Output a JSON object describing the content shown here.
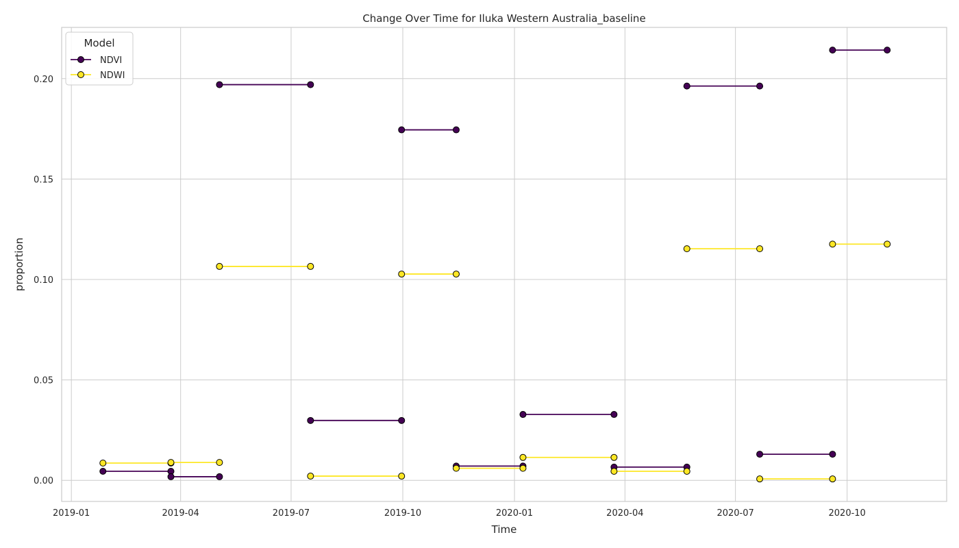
{
  "chart_data": {
    "type": "line",
    "title": "Change Over Time for Iluka Western Australia_baseline",
    "xlabel": "Time",
    "ylabel": "proportion",
    "xlim": [
      "2018-12-24",
      "2020-12-22"
    ],
    "ylim": [
      -0.0105,
      0.2255
    ],
    "x_ticks": [
      "2019-01",
      "2019-04",
      "2019-07",
      "2019-10",
      "2020-01",
      "2020-04",
      "2020-07",
      "2020-10"
    ],
    "y_ticks": [
      "0.00",
      "0.05",
      "0.10",
      "0.15",
      "0.20"
    ],
    "grid": true,
    "legend": {
      "title": "Model",
      "position": "top-left"
    },
    "series": [
      {
        "name": "NDVI",
        "color": "#440154",
        "segments": [
          [
            [
              "2019-01-27",
              0.0045
            ],
            [
              "2019-03-24",
              0.0045
            ]
          ],
          [
            [
              "2019-03-24",
              0.0018
            ],
            [
              "2019-05-03",
              0.0018
            ]
          ],
          [
            [
              "2019-05-03",
              0.197
            ],
            [
              "2019-07-17",
              0.197
            ]
          ],
          [
            [
              "2019-07-17",
              0.0298
            ],
            [
              "2019-09-30",
              0.0298
            ]
          ],
          [
            [
              "2019-09-30",
              0.1745
            ],
            [
              "2019-11-14",
              0.1745
            ]
          ],
          [
            [
              "2019-11-14",
              0.0071
            ],
            [
              "2020-01-08",
              0.0071
            ]
          ],
          [
            [
              "2020-01-08",
              0.0328
            ],
            [
              "2020-03-23",
              0.0328
            ]
          ],
          [
            [
              "2020-03-23",
              0.0066
            ],
            [
              "2020-05-22",
              0.0066
            ]
          ],
          [
            [
              "2020-05-22",
              0.1963
            ],
            [
              "2020-07-21",
              0.1963
            ]
          ],
          [
            [
              "2020-07-21",
              0.013
            ],
            [
              "2020-09-19",
              0.013
            ]
          ],
          [
            [
              "2020-09-19",
              0.2142
            ],
            [
              "2020-11-03",
              0.2142
            ]
          ]
        ]
      },
      {
        "name": "NDWI",
        "color": "#fde725",
        "segments": [
          [
            [
              "2019-01-27",
              0.0086
            ],
            [
              "2019-03-24",
              0.0086
            ]
          ],
          [
            [
              "2019-03-24",
              0.0089
            ],
            [
              "2019-05-03",
              0.0089
            ]
          ],
          [
            [
              "2019-05-03",
              0.1065
            ],
            [
              "2019-07-17",
              0.1065
            ]
          ],
          [
            [
              "2019-07-17",
              0.0021
            ],
            [
              "2019-09-30",
              0.0021
            ]
          ],
          [
            [
              "2019-09-30",
              0.1027
            ],
            [
              "2019-11-14",
              0.1027
            ]
          ],
          [
            [
              "2019-11-14",
              0.006
            ],
            [
              "2020-01-08",
              0.006
            ]
          ],
          [
            [
              "2020-01-08",
              0.0114
            ],
            [
              "2020-03-23",
              0.0114
            ]
          ],
          [
            [
              "2020-03-23",
              0.0045
            ],
            [
              "2020-05-22",
              0.0045
            ]
          ],
          [
            [
              "2020-05-22",
              0.1153
            ],
            [
              "2020-07-21",
              0.1153
            ]
          ],
          [
            [
              "2020-07-21",
              0.0007
            ],
            [
              "2020-09-19",
              0.0007
            ]
          ],
          [
            [
              "2020-09-19",
              0.1176
            ],
            [
              "2020-11-03",
              0.1176
            ]
          ]
        ]
      }
    ]
  }
}
